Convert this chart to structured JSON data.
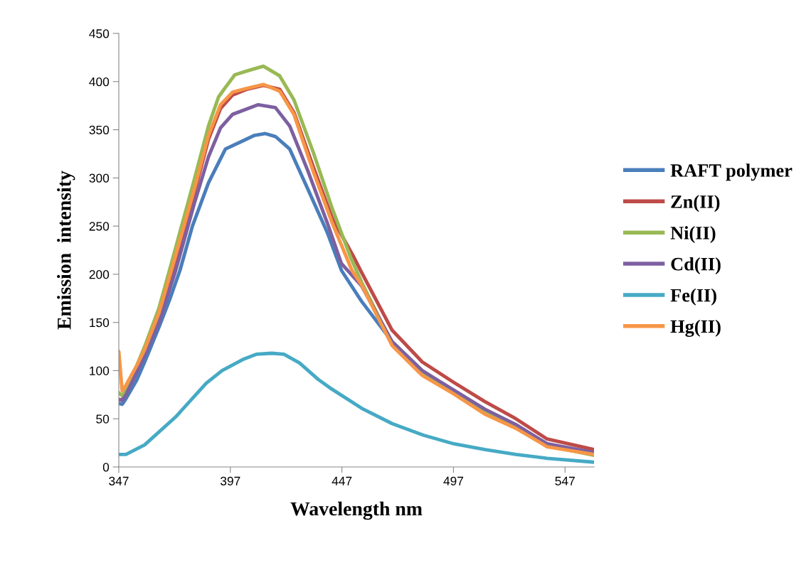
{
  "chart_data": {
    "type": "line",
    "xlabel": "Wavelength nm",
    "ylabel": "Emission  intensity",
    "xlim": [
      347,
      560
    ],
    "xticks": [
      347,
      397,
      447,
      497,
      547
    ],
    "ylim": [
      0,
      450
    ],
    "yticks": [
      0,
      50,
      100,
      150,
      200,
      250,
      300,
      350,
      400,
      450
    ],
    "grid": false,
    "legend": "right",
    "marker": "none",
    "line_style": "solid",
    "series": [
      {
        "name": "RAFT polymer",
        "color": "#4a7ebb",
        "x": [
          347,
          348.5,
          350,
          355,
          358.6,
          365,
          370,
          374.4,
          380,
          387.2,
          394.8,
          401.2,
          407.6,
          412.7,
          417.2,
          423.6,
          431.8,
          440.5,
          446.8,
          455.8,
          469.5,
          483,
          497,
          511,
          525,
          539,
          560
        ],
        "values": [
          66,
          65,
          70,
          90,
          109,
          145,
          175,
          204,
          250,
          295,
          330,
          337,
          344,
          346,
          343,
          330,
          288,
          243,
          204,
          172,
          130,
          100,
          79,
          59,
          43,
          24,
          14
        ]
      },
      {
        "name": "Zn(II)",
        "color": "#be4b48",
        "x": [
          347,
          348.5,
          350,
          355,
          358.6,
          365,
          371.2,
          380.8,
          387.2,
          392.6,
          398,
          404.4,
          411.8,
          419.1,
          425.5,
          434.1,
          442.7,
          452.3,
          455.8,
          469.5,
          483,
          497,
          511,
          525,
          539,
          560
        ],
        "values": [
          70,
          70,
          75,
          100,
          119,
          155,
          205,
          284,
          340,
          372,
          386,
          392,
          396,
          392,
          368,
          312,
          258,
          218,
          202,
          142,
          109,
          88,
          68,
          50,
          29,
          18
        ]
      },
      {
        "name": "Ni(II)",
        "color": "#98b954",
        "x": [
          347,
          348.5,
          350,
          355,
          358.6,
          365,
          370.3,
          380.8,
          387.2,
          391.7,
          394.8,
          399,
          404.4,
          411.8,
          419.1,
          425.5,
          434.1,
          442.7,
          451,
          455.8,
          469.5,
          483,
          497,
          511,
          525,
          539,
          560
        ],
        "values": [
          77,
          74,
          79,
          105,
          125,
          165,
          209,
          298,
          354,
          384,
          394,
          407,
          411,
          416,
          406,
          381,
          327,
          268,
          217,
          192,
          128,
          98,
          78,
          58,
          41,
          22,
          12
        ]
      },
      {
        "name": "Cd(II)",
        "color": "#7d60a0",
        "x": [
          347,
          348.5,
          350,
          355,
          358.6,
          365,
          372.5,
          380.8,
          387.2,
          392.6,
          398,
          409.5,
          417.2,
          423.6,
          431.8,
          440.5,
          446.8,
          455.8,
          469.5,
          483,
          497,
          511,
          525,
          539,
          560
        ],
        "values": [
          70,
          69,
          74,
          98,
          116,
          150,
          204,
          273,
          322,
          352,
          366,
          376,
          373,
          354,
          307,
          253,
          211,
          188,
          130,
          100,
          80,
          60,
          44,
          24,
          15
        ]
      },
      {
        "name": "Fe(II)",
        "color": "#46aac5",
        "x": [
          347,
          350.2,
          358.6,
          372.5,
          386.2,
          393.3,
          403,
          408.6,
          415.5,
          421,
          428,
          436.3,
          441.7,
          455.8,
          469.5,
          483.5,
          497.2,
          511.3,
          525,
          539,
          560
        ],
        "values": [
          13,
          13,
          23,
          52,
          87,
          100,
          112,
          117,
          118,
          117,
          108,
          91,
          82,
          61,
          45,
          33,
          24,
          18,
          13,
          9,
          5
        ]
      },
      {
        "name": "Hg(II)",
        "color": "#f79646",
        "x": [
          347,
          348.5,
          350,
          355,
          358.6,
          365,
          371.2,
          380.8,
          387.2,
          392.6,
          398,
          404.4,
          411.8,
          419.1,
          425.5,
          434.1,
          442.7,
          451.5,
          455.8,
          469.5,
          483,
          497,
          511,
          525,
          539,
          560
        ],
        "values": [
          120,
          79,
          84,
          105,
          122,
          160,
          209,
          288,
          344,
          376,
          389,
          393,
          397,
          390,
          366,
          307,
          253,
          204,
          189,
          126,
          95,
          76,
          55,
          40,
          21,
          13
        ]
      }
    ]
  }
}
